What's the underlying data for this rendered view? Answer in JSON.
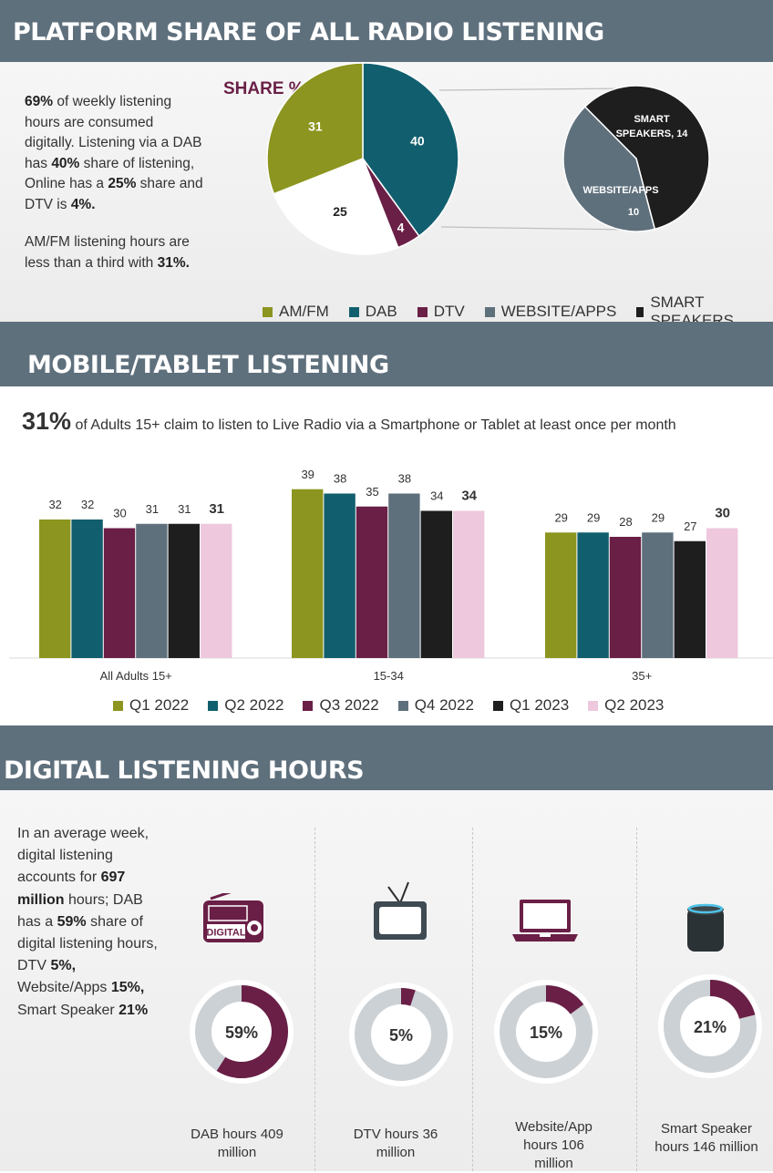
{
  "section1": {
    "title": "PLATFORM SHARE OF ALL RADIO LISTENING",
    "p1": [
      {
        "t": "69%",
        "b": true
      },
      {
        "t": " of weekly listening hours are consumed digitally. Listening via a DAB has ",
        "b": false
      },
      {
        "t": "40%",
        "b": true
      },
      {
        "t": " share of listening,  Online has a ",
        "b": false
      },
      {
        "t": "25%",
        "b": true
      },
      {
        "t": " share and DTV is ",
        "b": false
      },
      {
        "t": "4%.",
        "b": true
      }
    ],
    "p2": [
      {
        "t": "AM/FM listening hours are less than a third with ",
        "b": false
      },
      {
        "t": "31%.",
        "b": true
      }
    ]
  },
  "section2": {
    "title": "MOBILE/TABLET LISTENING",
    "headline_value": "31%",
    "headline_text": " of Adults 15+ claim to listen to Live Radio via a Smartphone or Tablet at least once per month"
  },
  "section3": {
    "title": "DIGITAL LISTENING HOURS",
    "p1": [
      {
        "t": "In an average week, digital listening accounts for ",
        "b": false
      },
      {
        "t": "697 million",
        "b": true
      },
      {
        "t": " hours; DAB has a ",
        "b": false
      },
      {
        "t": "59%",
        "b": true
      },
      {
        "t": " share of digital listening hours, DTV ",
        "b": false
      },
      {
        "t": "5%,",
        "b": true
      },
      {
        "t": " Website/Apps ",
        "b": false
      },
      {
        "t": "15%,",
        "b": true
      },
      {
        "t": " Smart Speaker ",
        "b": false
      },
      {
        "t": "21%",
        "b": true
      }
    ],
    "radio_label": "DIGITAL"
  },
  "colors": {
    "amfm": "#8c951f",
    "dab": "#115f6e",
    "dtv": "#6a1f46",
    "web": "#5f707d",
    "smart": "#1e1e1e",
    "online": "#ffffff",
    "q2_2023": "#eec8dc",
    "ring": "#ccd1d5"
  },
  "chart_data": [
    {
      "type": "pie",
      "title": "SHARE %",
      "slices": [
        {
          "label": "DAB",
          "value": 40,
          "color": "#115f6e"
        },
        {
          "label": "DTV",
          "value": 4,
          "color": "#6a1f46"
        },
        {
          "label": "",
          "value": 25,
          "color": "#ffffff"
        },
        {
          "label": "AM/FM",
          "value": 31,
          "color": "#8c951f"
        }
      ],
      "legend": [
        "AM/FM",
        "DAB",
        "DTV",
        "WEBSITE/APPS",
        "SMART SPEAKERS"
      ],
      "legend_position": "bottom"
    },
    {
      "type": "pie",
      "slices": [
        {
          "label": "SMART SPEAKERS, 14",
          "name": "SMART SPEAKERS",
          "value": 14,
          "color": "#1e1e1e"
        },
        {
          "label": "WEBSITE/APPS",
          "name": "WEBSITE/APPS",
          "value": 10,
          "color": "#5f707d"
        }
      ]
    },
    {
      "type": "bar",
      "categories": [
        "All Adults 15+",
        "15-34",
        "35+"
      ],
      "series": [
        {
          "name": "Q1 2022",
          "values": [
            32,
            39,
            29
          ],
          "color": "#8c951f"
        },
        {
          "name": "Q2 2022",
          "values": [
            32,
            38,
            29
          ],
          "color": "#115f6e"
        },
        {
          "name": "Q3 2022",
          "values": [
            30,
            35,
            28
          ],
          "color": "#6a1f46"
        },
        {
          "name": "Q4 2022",
          "values": [
            31,
            38,
            29
          ],
          "color": "#5f707d"
        },
        {
          "name": "Q1 2023",
          "values": [
            31,
            34,
            27
          ],
          "color": "#1e1e1e"
        },
        {
          "name": "Q2 2023",
          "values": [
            31,
            34,
            30
          ],
          "color": "#eec8dc"
        }
      ],
      "ylim": [
        0,
        40
      ],
      "grid": false,
      "legend_position": "bottom"
    },
    {
      "type": "pie",
      "title": "",
      "donuts": [
        {
          "label": "59%",
          "value": 59,
          "caption": "DAB hours 409 million",
          "icon": "radio-icon"
        },
        {
          "label": "5%",
          "value": 5,
          "caption": "DTV hours 36 million",
          "icon": "tv-icon"
        },
        {
          "label": "15%",
          "value": 15,
          "caption": "Website/App hours 106 million",
          "icon": "laptop-icon"
        },
        {
          "label": "21%",
          "value": 21,
          "caption": "Smart Speaker hours 146 million",
          "icon": "smart-speaker-icon"
        }
      ]
    }
  ]
}
